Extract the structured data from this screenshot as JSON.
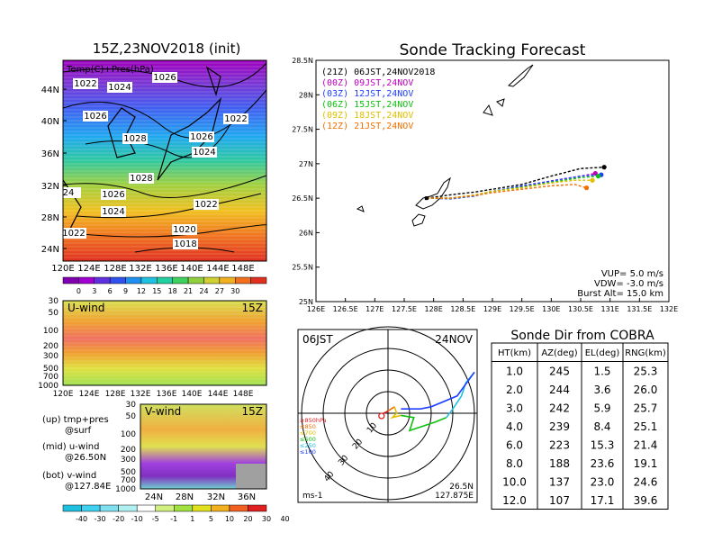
{
  "colors": {
    "temp_scale": [
      "#8000b0",
      "#a000d0",
      "#6030e0",
      "#3050f0",
      "#2090f0",
      "#20c0e0",
      "#20d0a0",
      "#40d060",
      "#90d040",
      "#d0d030",
      "#f0b020",
      "#f07020",
      "#e03020"
    ],
    "wind_scale": [
      "#20c0e0",
      "#40d0f0",
      "#80e0f0",
      "#b0f0f0",
      "#ffffff",
      "#d0f080",
      "#a0e040",
      "#e0e020",
      "#f0b020",
      "#f06020",
      "#e02020"
    ],
    "tracks": {
      "21Z": "#000000",
      "00Z": "#c000c0",
      "03Z": "#2040ff",
      "06Z": "#10c010",
      "09Z": "#e0c000",
      "12Z": "#f07000"
    },
    "hodo_bands": [
      "#e02020",
      "#f07000",
      "#e0c000",
      "#10c010",
      "#20c0e0",
      "#2040ff"
    ]
  },
  "left_top": {
    "title": "15Z,23NOV2018 (init)",
    "caption": "Temp(C)+Pres(hPa)",
    "lat_labels": [
      "44N",
      "40N",
      "36N",
      "32N",
      "28N",
      "24N"
    ],
    "lon_labels": [
      "120E",
      "124E",
      "128E",
      "132E",
      "136E",
      "140E",
      "144E",
      "148E"
    ],
    "pressure_labels": [
      {
        "text": "1022",
        "where": "nw"
      },
      {
        "text": "1024",
        "where": "nw2"
      },
      {
        "text": "1026",
        "where": "n"
      },
      {
        "text": "1026",
        "where": "w"
      },
      {
        "text": "1028",
        "where": "c"
      },
      {
        "text": "1022",
        "where": "e"
      },
      {
        "text": "1026",
        "where": "cj"
      },
      {
        "text": "1024",
        "where": "cj2"
      },
      {
        "text": "1028",
        "where": "s1"
      },
      {
        "text": "24",
        "where": "sw"
      },
      {
        "text": "1026",
        "where": "s2"
      },
      {
        "text": "1024",
        "where": "s3"
      },
      {
        "text": "1022",
        "where": "s4"
      },
      {
        "text": "1020",
        "where": "s5"
      },
      {
        "text": "1018",
        "where": "s6"
      },
      {
        "text": "1022",
        "where": "s7"
      }
    ],
    "colorbar_labels": [
      "0",
      "3",
      "6",
      "9",
      "12",
      "15",
      "18",
      "21",
      "24",
      "27",
      "30"
    ]
  },
  "left_mid": {
    "title": "U-wind",
    "time": "15Z",
    "y_labels": [
      "30",
      "50",
      "100",
      "200",
      "300",
      "500",
      "700",
      "1000"
    ],
    "x_labels": [
      "120E",
      "124E",
      "128E",
      "132E",
      "136E",
      "140E",
      "144E",
      "148E"
    ]
  },
  "left_bottom": {
    "title": "V-wind",
    "time": "15Z",
    "y_labels": [
      "30",
      "50",
      "100",
      "200",
      "300",
      "500",
      "700",
      "1000"
    ],
    "x_labels": [
      "24N",
      "28N",
      "32N",
      "36N"
    ],
    "legend_lines": [
      "(up) tmp+pres",
      "@surf",
      "(mid) u-wind",
      "@26.50N",
      "(bot) v-wind",
      "@127.84E"
    ],
    "colorbar_labels": [
      "-40",
      "-30",
      "-20",
      "-10",
      "-5",
      "-1",
      "1",
      "5",
      "10",
      "20",
      "30",
      "40"
    ]
  },
  "tracking": {
    "title": "Sonde Tracking Forecast",
    "legend": [
      {
        "key": "21Z",
        "text": "(21Z)  06JST,24NOV2018"
      },
      {
        "key": "00Z",
        "text": "(00Z)  09JST,24NOV"
      },
      {
        "key": "03Z",
        "text": "(03Z)  12JST,24NOV"
      },
      {
        "key": "06Z",
        "text": "(06Z)  15JST,24NOV"
      },
      {
        "key": "09Z",
        "text": "(09Z)  18JST,24NOV"
      },
      {
        "key": "12Z",
        "text": "(12Z)  21JST,24NOV"
      }
    ],
    "params": [
      "VUP=  5.0 m/s",
      "VDW= -3.0 m/s",
      "Burst Alt= 15.0 km"
    ]
  },
  "hodograph": {
    "time_label": "06JST",
    "date_label": "24NOV",
    "unit": "ms-1",
    "lat": "26.5N",
    "lon": "127.875E",
    "ring_labels": [
      "10",
      "20",
      "30",
      "40"
    ],
    "band_labels": [
      "≥850hPa",
      "≤850",
      "≤700",
      "≤500",
      "≤250",
      "≤100"
    ]
  },
  "table": {
    "title": "Sonde Dir from COBRA",
    "headers": [
      "HT(km)",
      "AZ(deg)",
      "EL(deg)",
      "RNG(km)"
    ],
    "rows": [
      [
        "1.0",
        "245",
        "1.5",
        "25.3"
      ],
      [
        "2.0",
        "244",
        "3.6",
        "26.0"
      ],
      [
        "3.0",
        "242",
        "5.9",
        "25.7"
      ],
      [
        "4.0",
        "239",
        "8.4",
        "25.1"
      ],
      [
        "6.0",
        "223",
        "15.3",
        "21.4"
      ],
      [
        "8.0",
        "188",
        "23.6",
        "19.1"
      ],
      [
        "10.0",
        "137",
        "23.0",
        "24.6"
      ],
      [
        "12.0",
        "107",
        "17.1",
        "39.6"
      ]
    ]
  },
  "chart_data": [
    {
      "type": "line",
      "title": "Sonde Tracking Forecast",
      "xlabel": "",
      "ylabel": "",
      "x_ticks": [
        "126E",
        "126.5E",
        "127E",
        "127.5E",
        "128E",
        "128.5E",
        "129E",
        "129.5E",
        "130E",
        "130.5E",
        "131E",
        "131.5E",
        "132E"
      ],
      "y_ticks": [
        "25N",
        "25.5N",
        "26N",
        "26.5N",
        "27N",
        "27.5N",
        "28N",
        "28.5N"
      ],
      "xlim": [
        126,
        132
      ],
      "ylim": [
        25,
        28.5
      ],
      "series": [
        {
          "name": "(21Z) 06JST,24NOV2018",
          "key": "21Z",
          "x": [
            127.88,
            128.3,
            128.7,
            129.0,
            129.5,
            130.0,
            130.5,
            130.9
          ],
          "y": [
            26.5,
            26.55,
            26.59,
            26.63,
            26.7,
            26.82,
            26.93,
            26.95
          ]
        },
        {
          "name": "(00Z) 09JST,24NOV",
          "key": "00Z",
          "x": [
            127.88,
            128.3,
            128.7,
            129.0,
            129.5,
            130.0,
            130.5,
            130.75
          ],
          "y": [
            26.5,
            26.5,
            26.54,
            26.6,
            26.67,
            26.75,
            26.82,
            26.86
          ]
        },
        {
          "name": "(03Z) 12JST,24NOV",
          "key": "03Z",
          "x": [
            127.88,
            128.3,
            128.7,
            129.0,
            129.5,
            130.0,
            130.5,
            130.85
          ],
          "y": [
            26.5,
            26.49,
            26.53,
            26.6,
            26.68,
            26.75,
            26.82,
            26.84
          ]
        },
        {
          "name": "(06Z) 15JST,24NOV",
          "key": "06Z",
          "x": [
            127.88,
            128.3,
            128.7,
            129.0,
            129.5,
            130.0,
            130.5,
            130.8
          ],
          "y": [
            26.5,
            26.5,
            26.54,
            26.6,
            26.66,
            26.73,
            26.8,
            26.82
          ]
        },
        {
          "name": "(09Z) 18JST,24NOV",
          "key": "09Z",
          "x": [
            127.88,
            128.3,
            128.7,
            129.0,
            129.5,
            130.0,
            130.4,
            130.7
          ],
          "y": [
            26.5,
            26.5,
            26.55,
            26.6,
            26.65,
            26.72,
            26.76,
            26.76
          ]
        },
        {
          "name": "(12Z) 21JST,24NOV",
          "key": "12Z",
          "x": [
            127.88,
            128.3,
            128.7,
            129.0,
            129.5,
            130.0,
            130.4,
            130.6
          ],
          "y": [
            26.5,
            26.5,
            26.54,
            26.58,
            26.63,
            26.68,
            26.7,
            26.65
          ]
        }
      ]
    },
    {
      "type": "table",
      "title": "Sonde Dir from COBRA",
      "columns": [
        "HT(km)",
        "AZ(deg)",
        "EL(deg)",
        "RNG(km)"
      ],
      "rows": [
        [
          1.0,
          245,
          1.5,
          25.3
        ],
        [
          2.0,
          244,
          3.6,
          26.0
        ],
        [
          3.0,
          242,
          5.9,
          25.7
        ],
        [
          4.0,
          239,
          8.4,
          25.1
        ],
        [
          6.0,
          223,
          15.3,
          21.4
        ],
        [
          8.0,
          188,
          23.6,
          19.1
        ],
        [
          10.0,
          137,
          23.0,
          24.6
        ],
        [
          12.0,
          107,
          17.1,
          39.6
        ]
      ]
    },
    {
      "type": "line",
      "title": "",
      "xlabel": "",
      "ylabel": "",
      "rings": [
        10,
        20,
        30,
        40
      ],
      "series": [
        {
          "band": "≥850hPa",
          "u": [
            -2,
            0
          ],
          "v": [
            0,
            1
          ]
        },
        {
          "band": "≤850",
          "u": [
            0,
            3
          ],
          "v": [
            1,
            3
          ]
        },
        {
          "band": "≤700",
          "u": [
            3,
            4,
            2,
            6
          ],
          "v": [
            3,
            0,
            -2,
            -1
          ]
        },
        {
          "band": "≤500",
          "u": [
            6,
            12,
            10,
            22,
            27
          ],
          "v": [
            -1,
            -2,
            -8,
            -4,
            -2
          ]
        },
        {
          "band": "≤250",
          "u": [
            27,
            30,
            34,
            36,
            40
          ],
          "v": [
            -2,
            2,
            8,
            14,
            19
          ]
        },
        {
          "band": "≤100",
          "u": [
            40,
            32,
            20,
            15,
            6
          ],
          "v": [
            19,
            8,
            3,
            2,
            2
          ]
        }
      ]
    }
  ]
}
